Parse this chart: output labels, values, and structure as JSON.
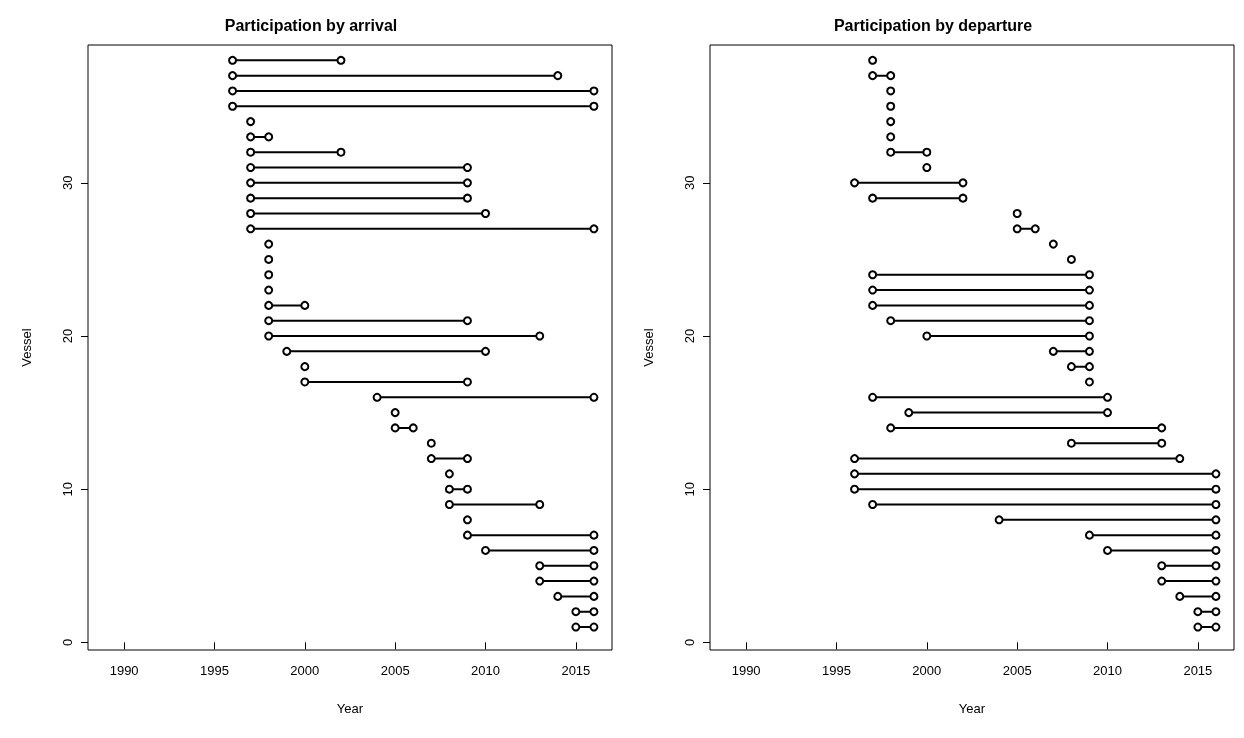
{
  "chart_data": [
    {
      "type": "line",
      "title": "Participation by arrival",
      "xlabel": "Year",
      "ylabel": "Vessel",
      "xlim": [
        1988,
        2017
      ],
      "xticks": [
        1990,
        1995,
        2000,
        2005,
        2010,
        2015
      ],
      "ylim": [
        -0.5,
        39
      ],
      "yticks": [
        0,
        10,
        20,
        30
      ],
      "grid": false,
      "marker": "circle",
      "line_style": "solid",
      "series": [
        {
          "color": "#000000",
          "x": [
            1996,
            2002
          ],
          "values": [
            38,
            38
          ]
        },
        {
          "color": "#000000",
          "x": [
            1996,
            2014
          ],
          "values": [
            37,
            37
          ]
        },
        {
          "color": "#000000",
          "x": [
            1996,
            2016
          ],
          "values": [
            36,
            36
          ]
        },
        {
          "color": "#000000",
          "x": [
            1996,
            2016
          ],
          "values": [
            35,
            35
          ]
        },
        {
          "color": "#000000",
          "x": [
            1997
          ],
          "values": [
            34
          ]
        },
        {
          "color": "#000000",
          "x": [
            1997,
            1998
          ],
          "values": [
            33,
            33
          ]
        },
        {
          "color": "#000000",
          "x": [
            1997,
            2002
          ],
          "values": [
            32,
            32
          ]
        },
        {
          "color": "#000000",
          "x": [
            1997,
            2009
          ],
          "values": [
            31,
            31
          ]
        },
        {
          "color": "#000000",
          "x": [
            1997,
            2009
          ],
          "values": [
            30,
            30
          ]
        },
        {
          "color": "#000000",
          "x": [
            1997,
            2009
          ],
          "values": [
            29,
            29
          ]
        },
        {
          "color": "#000000",
          "x": [
            1997,
            2010
          ],
          "values": [
            28,
            28
          ]
        },
        {
          "color": "#000000",
          "x": [
            1997,
            2016
          ],
          "values": [
            27,
            27
          ]
        },
        {
          "color": "#000000",
          "x": [
            1998
          ],
          "values": [
            26
          ]
        },
        {
          "color": "#000000",
          "x": [
            1998
          ],
          "values": [
            25
          ]
        },
        {
          "color": "#000000",
          "x": [
            1998
          ],
          "values": [
            24
          ]
        },
        {
          "color": "#000000",
          "x": [
            1998
          ],
          "values": [
            23
          ]
        },
        {
          "color": "#000000",
          "x": [
            1998,
            2000
          ],
          "values": [
            22,
            22
          ]
        },
        {
          "color": "#000000",
          "x": [
            1998,
            2009
          ],
          "values": [
            21,
            21
          ]
        },
        {
          "color": "#000000",
          "x": [
            1998,
            2013
          ],
          "values": [
            20,
            20
          ]
        },
        {
          "color": "#000000",
          "x": [
            1999,
            2010
          ],
          "values": [
            19,
            19
          ]
        },
        {
          "color": "#000000",
          "x": [
            2000
          ],
          "values": [
            18
          ]
        },
        {
          "color": "#000000",
          "x": [
            2000,
            2009
          ],
          "values": [
            17,
            17
          ]
        },
        {
          "color": "#000000",
          "x": [
            2004,
            2016
          ],
          "values": [
            16,
            16
          ]
        },
        {
          "color": "#000000",
          "x": [
            2005
          ],
          "values": [
            15
          ]
        },
        {
          "color": "#000000",
          "x": [
            2005,
            2006
          ],
          "values": [
            14,
            14
          ]
        },
        {
          "color": "#000000",
          "x": [
            2007
          ],
          "values": [
            13
          ]
        },
        {
          "color": "#000000",
          "x": [
            2007,
            2009
          ],
          "values": [
            12,
            12
          ]
        },
        {
          "color": "#000000",
          "x": [
            2008
          ],
          "values": [
            11
          ]
        },
        {
          "color": "#000000",
          "x": [
            2008,
            2009
          ],
          "values": [
            10,
            10
          ]
        },
        {
          "color": "#000000",
          "x": [
            2008,
            2013
          ],
          "values": [
            9,
            9
          ]
        },
        {
          "color": "#000000",
          "x": [
            2009
          ],
          "values": [
            8
          ]
        },
        {
          "color": "#000000",
          "x": [
            2009,
            2016
          ],
          "values": [
            7,
            7
          ]
        },
        {
          "color": "#000000",
          "x": [
            2010,
            2016
          ],
          "values": [
            6,
            6
          ]
        },
        {
          "color": "#000000",
          "x": [
            2013,
            2016
          ],
          "values": [
            5,
            5
          ]
        },
        {
          "color": "#000000",
          "x": [
            2013,
            2016
          ],
          "values": [
            4,
            4
          ]
        },
        {
          "color": "#000000",
          "x": [
            2014,
            2016
          ],
          "values": [
            3,
            3
          ]
        },
        {
          "color": "#000000",
          "x": [
            2015,
            2016
          ],
          "values": [
            2,
            2
          ]
        },
        {
          "color": "#000000",
          "x": [
            2015,
            2016
          ],
          "values": [
            1,
            1
          ]
        }
      ]
    },
    {
      "type": "line",
      "title": "Participation by departure",
      "xlabel": "Year",
      "ylabel": "Vessel",
      "xlim": [
        1988,
        2017
      ],
      "xticks": [
        1990,
        1995,
        2000,
        2005,
        2010,
        2015
      ],
      "ylim": [
        -0.5,
        39
      ],
      "yticks": [
        0,
        10,
        20,
        30
      ],
      "grid": false,
      "marker": "circle",
      "line_style": "solid",
      "series": [
        {
          "color": "#000000",
          "x": [
            1997
          ],
          "values": [
            38
          ]
        },
        {
          "color": "#000000",
          "x": [
            1997,
            1998
          ],
          "values": [
            37,
            37
          ]
        },
        {
          "color": "#000000",
          "x": [
            1998
          ],
          "values": [
            36
          ]
        },
        {
          "color": "#000000",
          "x": [
            1998
          ],
          "values": [
            35
          ]
        },
        {
          "color": "#000000",
          "x": [
            1998
          ],
          "values": [
            34
          ]
        },
        {
          "color": "#000000",
          "x": [
            1998
          ],
          "values": [
            33
          ]
        },
        {
          "color": "#000000",
          "x": [
            1998,
            2000
          ],
          "values": [
            32,
            32
          ]
        },
        {
          "color": "#000000",
          "x": [
            2000
          ],
          "values": [
            31
          ]
        },
        {
          "color": "#000000",
          "x": [
            1996,
            2002
          ],
          "values": [
            30,
            30
          ]
        },
        {
          "color": "#000000",
          "x": [
            1997,
            2002
          ],
          "values": [
            29,
            29
          ]
        },
        {
          "color": "#000000",
          "x": [
            2005
          ],
          "values": [
            28
          ]
        },
        {
          "color": "#000000",
          "x": [
            2005,
            2006
          ],
          "values": [
            27,
            27
          ]
        },
        {
          "color": "#000000",
          "x": [
            2007
          ],
          "values": [
            26
          ]
        },
        {
          "color": "#000000",
          "x": [
            2008
          ],
          "values": [
            25
          ]
        },
        {
          "color": "#000000",
          "x": [
            1997,
            2009
          ],
          "values": [
            24,
            24
          ]
        },
        {
          "color": "#000000",
          "x": [
            1997,
            2009
          ],
          "values": [
            23,
            23
          ]
        },
        {
          "color": "#000000",
          "x": [
            1997,
            2009
          ],
          "values": [
            22,
            22
          ]
        },
        {
          "color": "#000000",
          "x": [
            1998,
            2009
          ],
          "values": [
            21,
            21
          ]
        },
        {
          "color": "#000000",
          "x": [
            2000,
            2009
          ],
          "values": [
            20,
            20
          ]
        },
        {
          "color": "#000000",
          "x": [
            2007,
            2009
          ],
          "values": [
            19,
            19
          ]
        },
        {
          "color": "#000000",
          "x": [
            2008,
            2009
          ],
          "values": [
            18,
            18
          ]
        },
        {
          "color": "#000000",
          "x": [
            2009
          ],
          "values": [
            17
          ]
        },
        {
          "color": "#000000",
          "x": [
            1997,
            2010
          ],
          "values": [
            16,
            16
          ]
        },
        {
          "color": "#000000",
          "x": [
            1999,
            2010
          ],
          "values": [
            15,
            15
          ]
        },
        {
          "color": "#000000",
          "x": [
            1998,
            2013
          ],
          "values": [
            14,
            14
          ]
        },
        {
          "color": "#000000",
          "x": [
            2008,
            2013
          ],
          "values": [
            13,
            13
          ]
        },
        {
          "color": "#000000",
          "x": [
            1996,
            2014
          ],
          "values": [
            12,
            12
          ]
        },
        {
          "color": "#000000",
          "x": [
            1996,
            2016
          ],
          "values": [
            11,
            11
          ]
        },
        {
          "color": "#000000",
          "x": [
            1996,
            2016
          ],
          "values": [
            10,
            10
          ]
        },
        {
          "color": "#000000",
          "x": [
            1997,
            2016
          ],
          "values": [
            9,
            9
          ]
        },
        {
          "color": "#000000",
          "x": [
            2004,
            2016
          ],
          "values": [
            8,
            8
          ]
        },
        {
          "color": "#000000",
          "x": [
            2009,
            2016
          ],
          "values": [
            7,
            7
          ]
        },
        {
          "color": "#000000",
          "x": [
            2010,
            2016
          ],
          "values": [
            6,
            6
          ]
        },
        {
          "color": "#000000",
          "x": [
            2013,
            2016
          ],
          "values": [
            5,
            5
          ]
        },
        {
          "color": "#000000",
          "x": [
            2013,
            2016
          ],
          "values": [
            4,
            4
          ]
        },
        {
          "color": "#000000",
          "x": [
            2014,
            2016
          ],
          "values": [
            3,
            3
          ]
        },
        {
          "color": "#000000",
          "x": [
            2015,
            2016
          ],
          "values": [
            2,
            2
          ]
        },
        {
          "color": "#000000",
          "x": [
            2015,
            2016
          ],
          "values": [
            1,
            1
          ]
        }
      ]
    }
  ]
}
